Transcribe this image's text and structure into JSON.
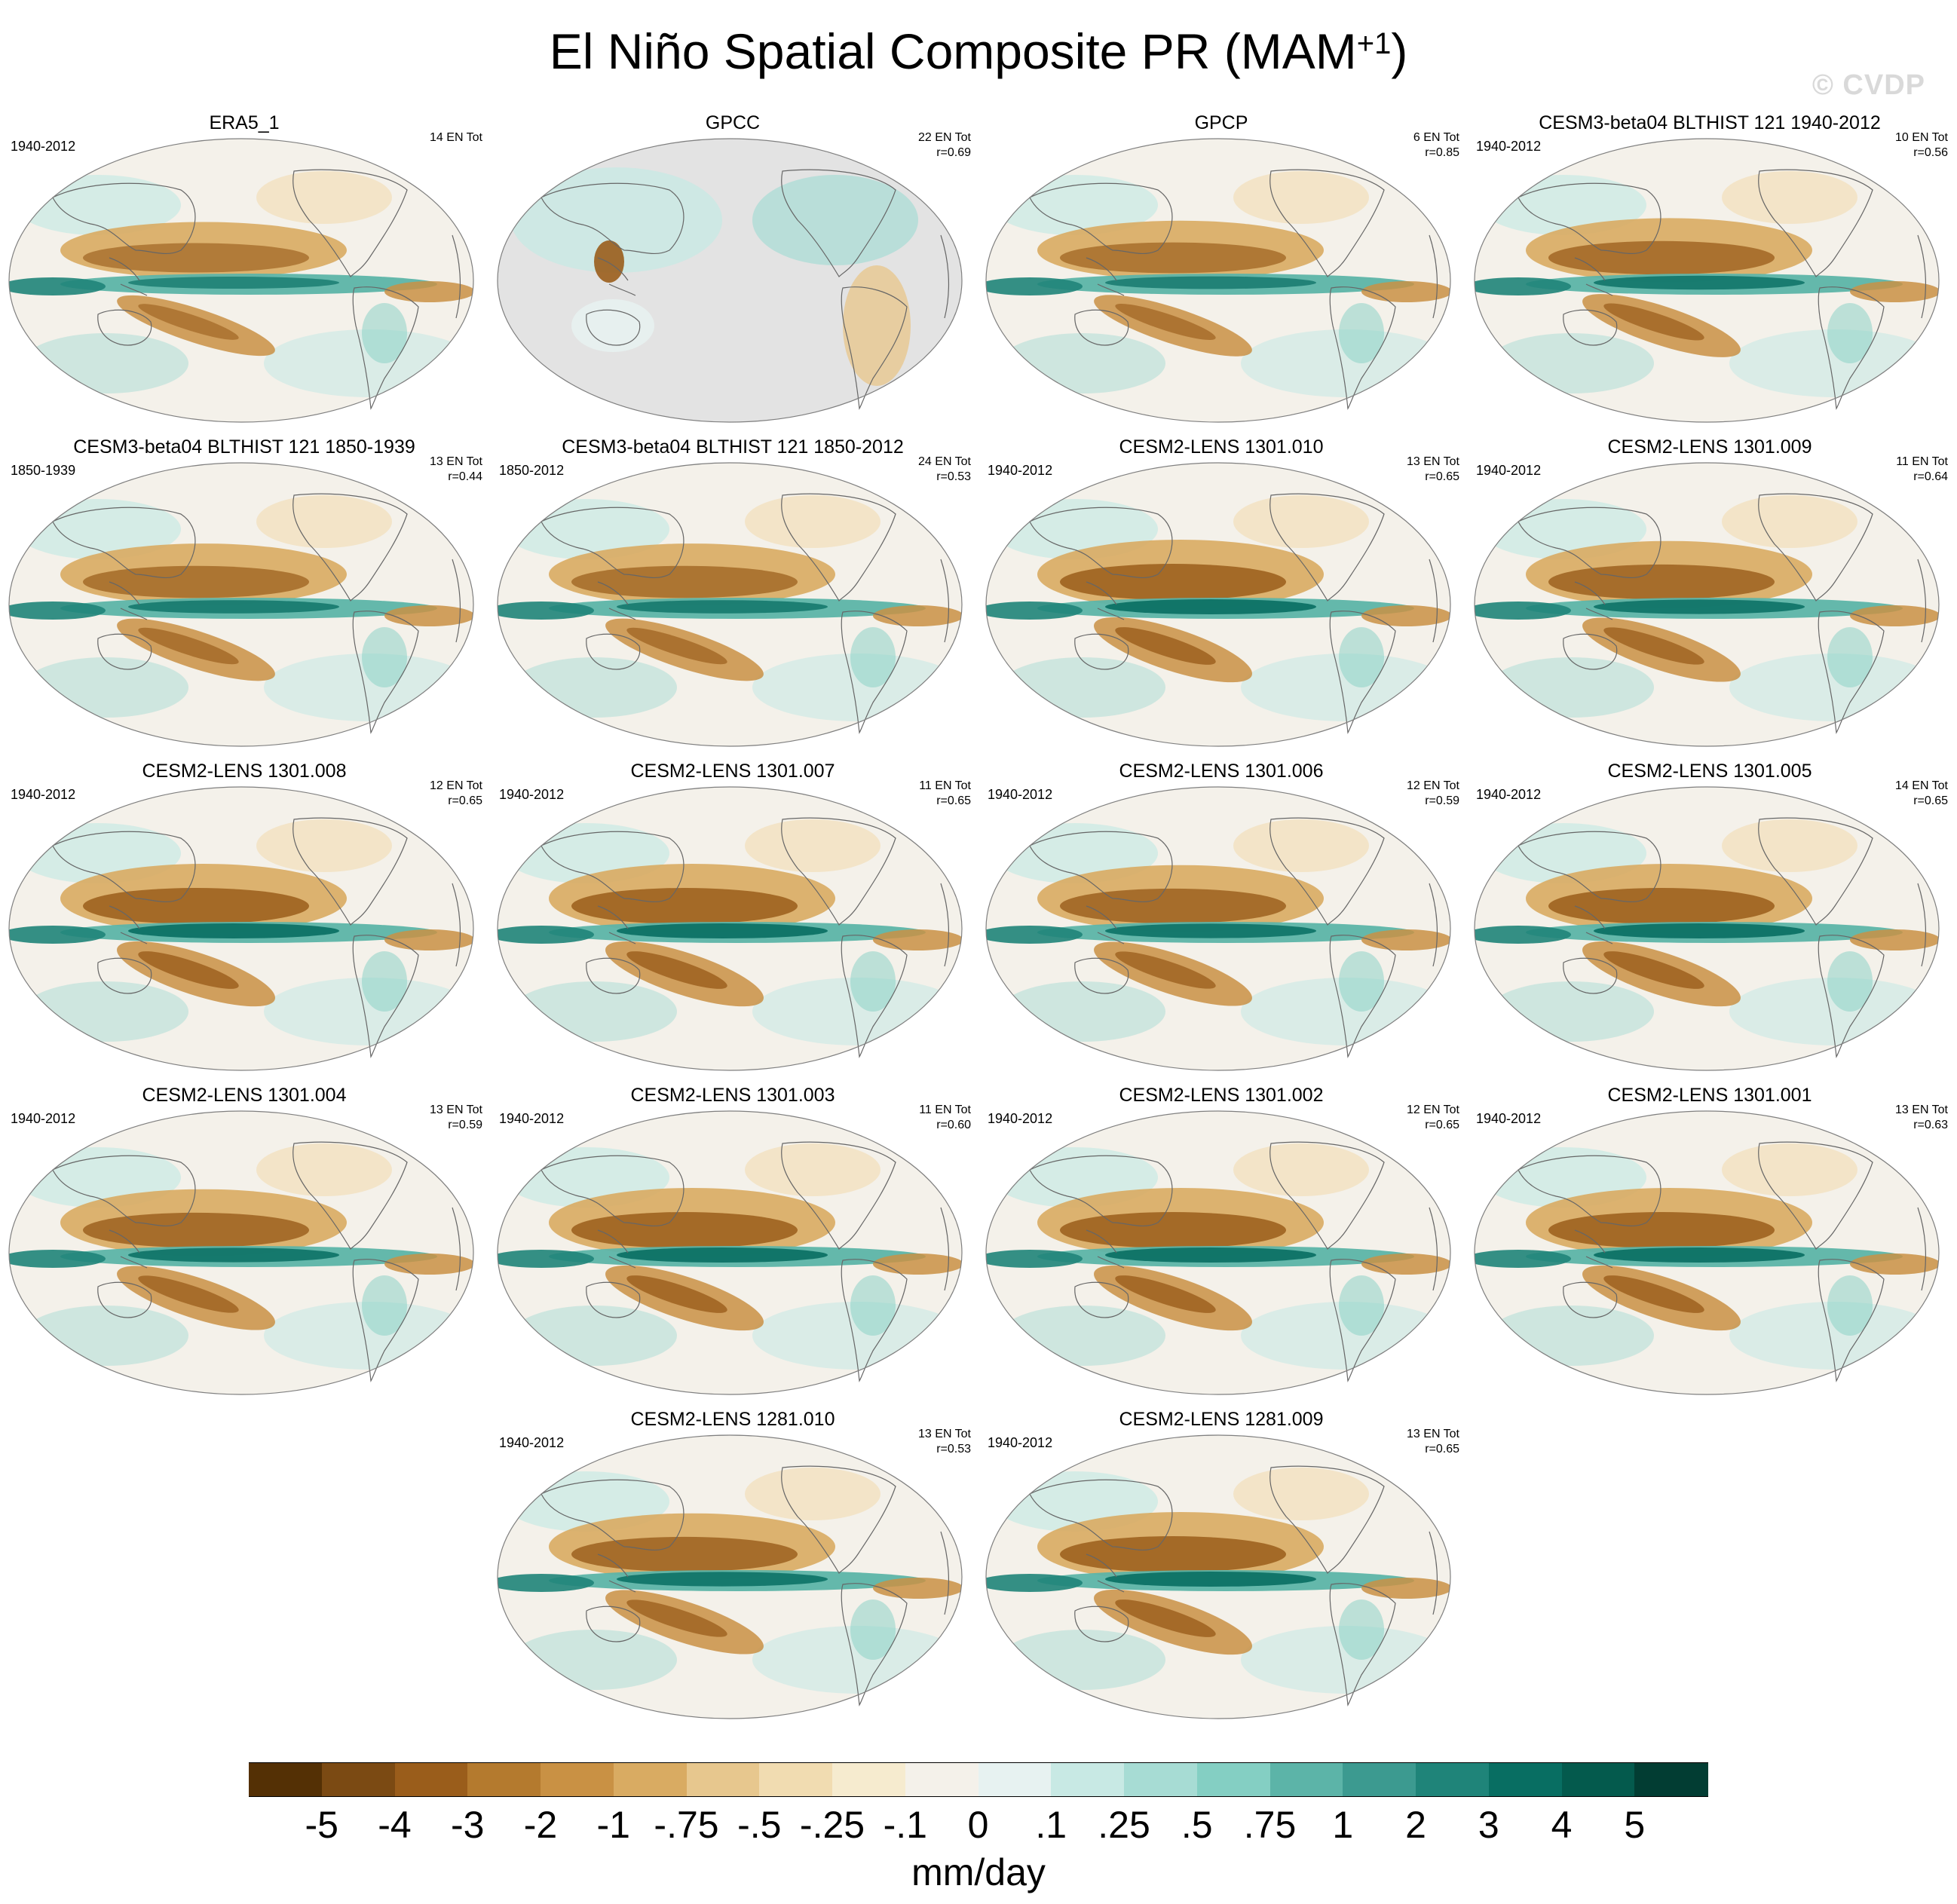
{
  "title": "El Niño Spatial Composite PR (MAM",
  "title_sup": "+1",
  "title_close": ")",
  "watermark": "© CVDP",
  "panels": [
    {
      "name": "ERA5_1",
      "years": "1940-2012",
      "stat1": "14 EN Tot",
      "stat2": "",
      "strength": 0.75,
      "masked": false
    },
    {
      "name": "GPCC",
      "years": "",
      "stat1": "22 EN Tot",
      "stat2": "r=0.69",
      "strength": 0.5,
      "masked": true
    },
    {
      "name": "GPCP",
      "years": "",
      "stat1": "6 EN Tot",
      "stat2": "r=0.85",
      "strength": 0.8,
      "masked": false
    },
    {
      "name": "CESM3-beta04 BLTHIST 121 1940-2012",
      "years": "1940-2012",
      "stat1": "10 EN Tot",
      "stat2": "r=0.56",
      "strength": 0.9,
      "masked": false
    },
    {
      "name": "CESM3-beta04 BLTHIST 121 1850-1939",
      "years": "1850-1939",
      "stat1": "13 EN Tot",
      "stat2": "r=0.44",
      "strength": 0.85,
      "masked": false
    },
    {
      "name": "CESM3-beta04 BLTHIST 121 1850-2012",
      "years": "1850-2012",
      "stat1": "24 EN Tot",
      "stat2": "r=0.53",
      "strength": 0.85,
      "masked": false
    },
    {
      "name": "CESM2-LENS 1301.010",
      "years": "1940-2012",
      "stat1": "13 EN Tot",
      "stat2": "r=0.65",
      "strength": 1.0,
      "masked": false
    },
    {
      "name": "CESM2-LENS 1301.009",
      "years": "1940-2012",
      "stat1": "11 EN Tot",
      "stat2": "r=0.64",
      "strength": 0.95,
      "masked": false
    },
    {
      "name": "CESM2-LENS 1301.008",
      "years": "1940-2012",
      "stat1": "12 EN Tot",
      "stat2": "r=0.65",
      "strength": 1.0,
      "masked": false
    },
    {
      "name": "CESM2-LENS 1301.007",
      "years": "1940-2012",
      "stat1": "11 EN Tot",
      "stat2": "r=0.65",
      "strength": 1.0,
      "masked": false
    },
    {
      "name": "CESM2-LENS 1301.006",
      "years": "1940-2012",
      "stat1": "12 EN Tot",
      "stat2": "r=0.59",
      "strength": 0.95,
      "masked": false
    },
    {
      "name": "CESM2-LENS 1301.005",
      "years": "1940-2012",
      "stat1": "14 EN Tot",
      "stat2": "r=0.65",
      "strength": 1.0,
      "masked": false
    },
    {
      "name": "CESM2-LENS 1301.004",
      "years": "1940-2012",
      "stat1": "13 EN Tot",
      "stat2": "r=0.59",
      "strength": 0.95,
      "masked": false
    },
    {
      "name": "CESM2-LENS 1301.003",
      "years": "1940-2012",
      "stat1": "11 EN Tot",
      "stat2": "r=0.60",
      "strength": 1.0,
      "masked": false
    },
    {
      "name": "CESM2-LENS 1301.002",
      "years": "1940-2012",
      "stat1": "12 EN Tot",
      "stat2": "r=0.65",
      "strength": 1.0,
      "masked": false
    },
    {
      "name": "CESM2-LENS 1301.001",
      "years": "1940-2012",
      "stat1": "13 EN Tot",
      "stat2": "r=0.63",
      "strength": 1.0,
      "masked": false
    },
    {
      "name": "CESM2-LENS 1281.010",
      "years": "1940-2012",
      "stat1": "13 EN Tot",
      "stat2": "r=0.53",
      "strength": 0.95,
      "masked": false
    },
    {
      "name": "CESM2-LENS 1281.009",
      "years": "1940-2012",
      "stat1": "13 EN Tot",
      "stat2": "r=0.65",
      "strength": 1.0,
      "masked": false
    }
  ],
  "chart_data": {
    "type": "heatmap",
    "title": "El Niño Spatial Composite PR (MAM+1)",
    "units": "mm/day",
    "levels": [
      "-5",
      "-4",
      "-3",
      "-2",
      "-1",
      "-.75",
      "-.5",
      "-.25",
      "-.1",
      "0",
      ".1",
      ".25",
      ".5",
      ".75",
      "1",
      "2",
      "3",
      "4",
      "5"
    ],
    "colors": [
      "#543005",
      "#7b4a13",
      "#9a5d1b",
      "#b47a2e",
      "#c99144",
      "#d9ab62",
      "#e7c78e",
      "#f1dcb1",
      "#f6ebcf",
      "#f4f1ea",
      "#e7f2f1",
      "#c8e9e4",
      "#a7dcd4",
      "#84cfc3",
      "#5cb4a8",
      "#3c9a90",
      "#1f8479",
      "#086e62",
      "#045a4d",
      "#023d33"
    ]
  }
}
